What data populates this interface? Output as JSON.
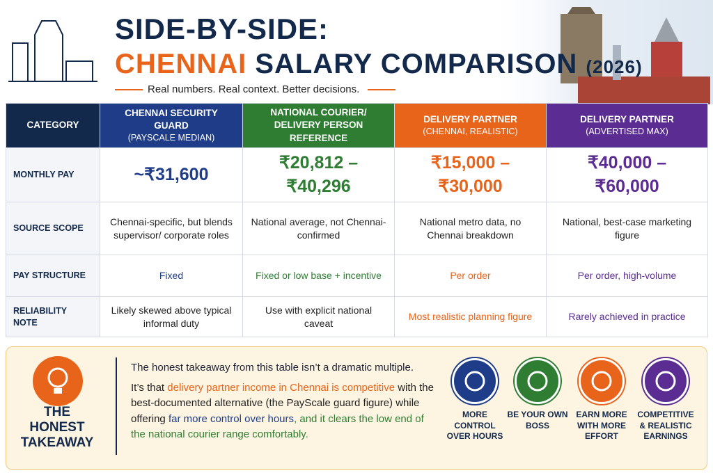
{
  "header": {
    "title_line1": "SIDE-BY-SIDE:",
    "title_highlight": "CHENNAI",
    "title_rest": "SALARY COMPARISON",
    "title_year": "(2026)",
    "tagline": "Real numbers. Real context. Better decisions."
  },
  "table": {
    "columns": [
      {
        "title": "CATEGORY"
      },
      {
        "title": "CHENNAI SECURITY GUARD",
        "subtitle": "(PAYSCALE MEDIAN)"
      },
      {
        "title": "NATIONAL COURIER/ DELIVERY PERSON REFERENCE"
      },
      {
        "title": "DELIVERY PARTNER",
        "subtitle": "(CHENNAI, REALISTIC)"
      },
      {
        "title": "DELIVERY PARTNER",
        "subtitle": "(ADVERTISED MAX)"
      }
    ],
    "rows": [
      [
        "MONTHLY PAY",
        "~₹31,600",
        "₹20,812 – ₹40,296",
        "₹15,000 – ₹30,000",
        "₹40,000 – ₹60,000"
      ],
      [
        "SOURCE SCOPE",
        "Chennai-specific, but blends supervisor/ corporate roles",
        "National average, not Chennai-confirmed",
        "National metro data, no Chennai breakdown",
        "National, best-case marketing figure"
      ],
      [
        "PAY STRUCTURE",
        "Fixed",
        "Fixed or low base + incentive",
        "Per order",
        "Per order, high-volume"
      ],
      [
        "RELIABILITY NOTE",
        "Likely skewed above typical informal duty",
        "Use with explicit national caveat",
        "Most realistic planning figure",
        "Rarely achieved in practice"
      ]
    ]
  },
  "takeaway": {
    "title": "THE HONEST TAKEAWAY",
    "lead": "The honest takeaway from this table isn’t a dramatic multiple.",
    "body": [
      "It’s that ",
      "delivery partner income in Chennai is competitive",
      " with the best-documented alternative (the PayScale guard figure) while offering ",
      "far more control over hours",
      ", and it clears the low end of the national courier range comfortably."
    ]
  },
  "badges": [
    "MORE CONTROL OVER HOURS",
    "BE YOUR OWN BOSS",
    "EARN MORE WITH MORE EFFORT",
    "COMPETITIVE & REALISTIC EARNINGS"
  ]
}
